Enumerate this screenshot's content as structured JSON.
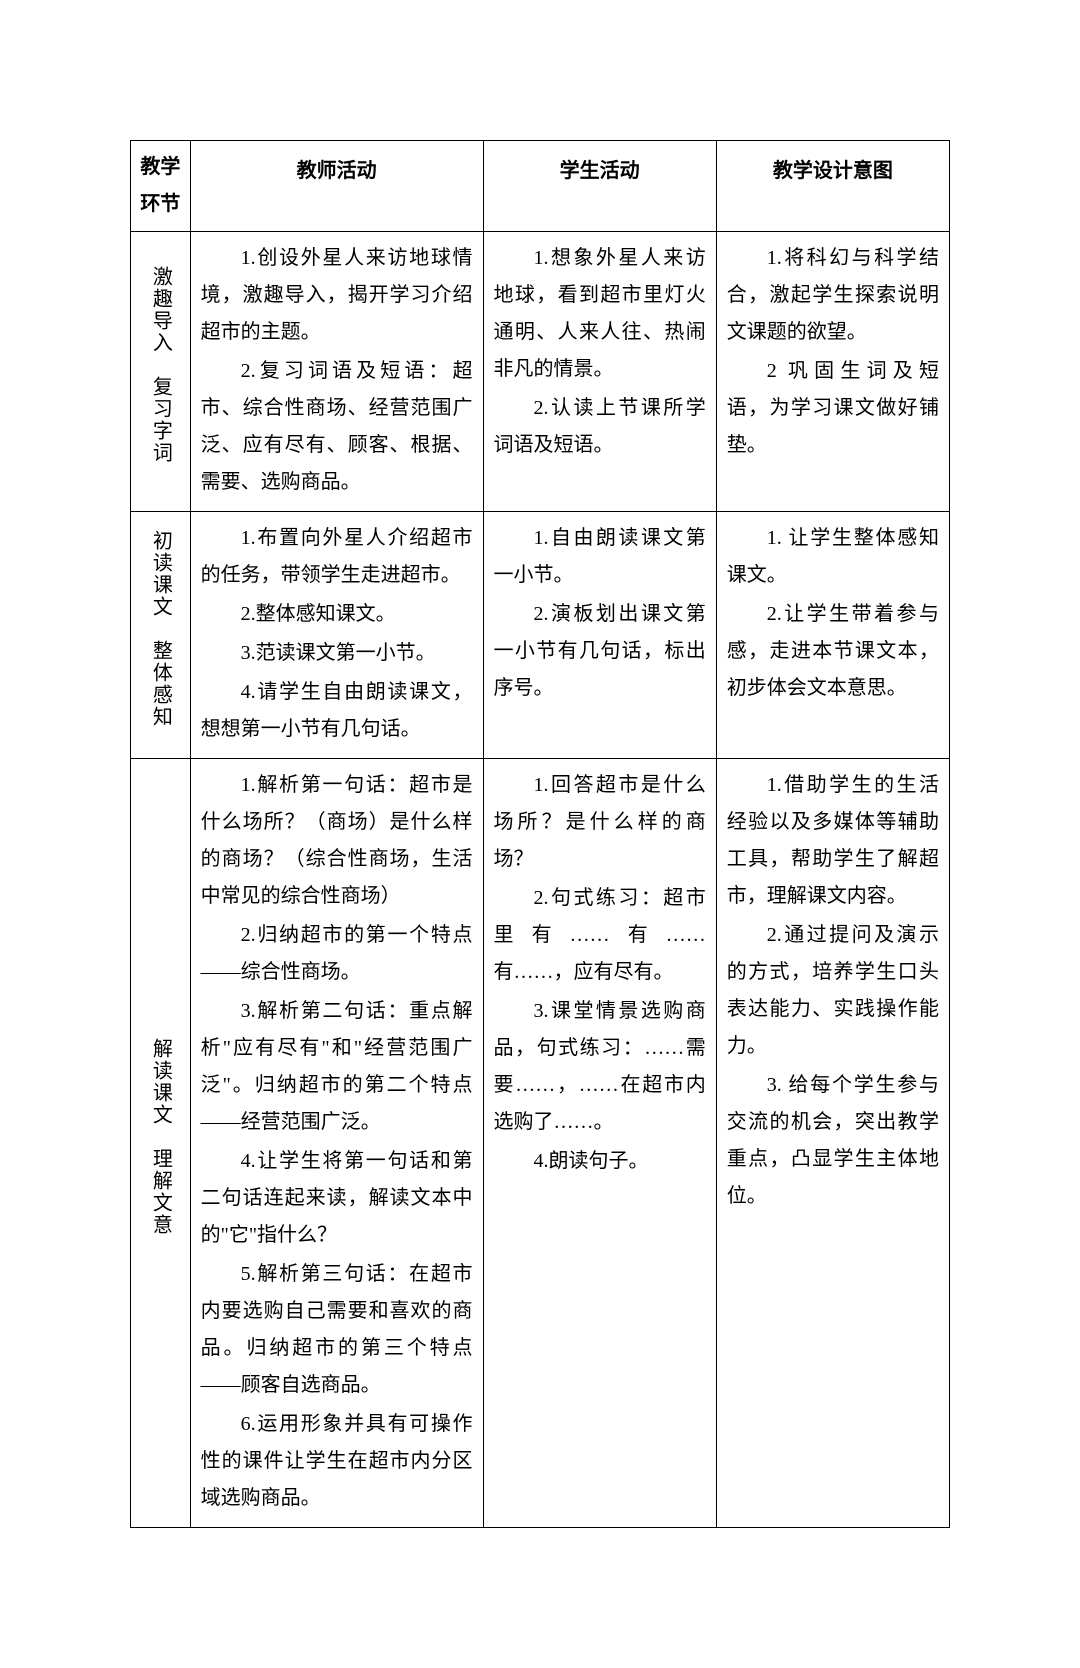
{
  "headers": {
    "stage": "教学环节",
    "teacher": "教师活动",
    "student": "学生活动",
    "intent": "教学设计意图"
  },
  "rows": [
    {
      "stage": "激趣导入　复习字词",
      "teacher_paras": [
        "1.创设外星人来访地球情境，激趣导入，揭开学习介绍超市的主题。",
        "2.复习词语及短语：超市、综合性商场、经营范围广泛、应有尽有、顾客、根据、需要、选购商品。"
      ],
      "student_paras": [
        "1.想象外星人来访地球，看到超市里灯火通明、人来人往、热闹非凡的情景。",
        "2.认读上节课所学词语及短语。"
      ],
      "intent_paras": [
        "1.将科幻与科学结合，激起学生探索说明文课题的欲望。",
        "2 巩固生词及短语，为学习课文做好铺垫。"
      ]
    },
    {
      "stage": "初读课文　整体感知",
      "teacher_paras": [
        "1.布置向外星人介绍超市的任务，带领学生走进超市。",
        "2.整体感知课文。",
        "3.范读课文第一小节。",
        "4.请学生自由朗读课文，想想第一小节有几句话。"
      ],
      "student_paras": [
        "1.自由朗读课文第一小节。",
        "2.演板划出课文第一小节有几句话，标出序号。"
      ],
      "intent_paras": [
        "1. 让学生整体感知课文。",
        "2.让学生带着参与感，走进本节课文本，初步体会文本意思。"
      ]
    },
    {
      "stage": "解读课文　理解文意",
      "teacher_paras": [
        "1.解析第一句话：超市是什么场所？（商场）是什么样的商场？（综合性商场，生活中常见的综合性商场）",
        "2.归纳超市的第一个特点——综合性商场。",
        "3.解析第二句话：重点解析\"应有尽有\"和\"经营范围广泛\"。归纳超市的第二个特点——经营范围广泛。",
        "4.让学生将第一句话和第二句话连起来读，解读文本中的\"它\"指什么？",
        "5.解析第三句话：在超市内要选购自己需要和喜欢的商品。归纳超市的第三个特点——顾客自选商品。",
        "6.运用形象并具有可操作性的课件让学生在超市内分区域选购商品。"
      ],
      "student_paras": [
        "1.回答超市是什么场所？是什么样的商场？",
        "2.句式练习：超市里有……有……有……，应有尽有。",
        "3.课堂情景选购商品，句式练习：……需要……，……在超市内选购了……。",
        "4.朗读句子。"
      ],
      "intent_paras": [
        "1.借助学生的生活经验以及多媒体等辅助工具，帮助学生了解超市，理解课文内容。",
        "2.通过提问及演示的方式，培养学生口头表达能力、实践操作能力。",
        "3. 给每个学生参与交流的机会，突出教学重点，凸显学生主体地位。"
      ]
    }
  ]
}
